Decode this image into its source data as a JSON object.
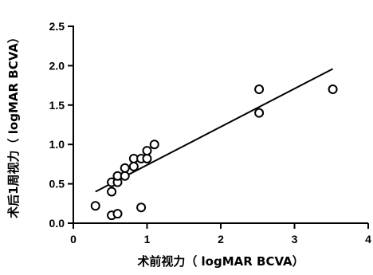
{
  "chart_data": {
    "type": "scatter",
    "xlabel": "术前视力（ logMAR BCVA）",
    "ylabel": "术后1周视力（ logMAR BCVA）",
    "xlim": [
      0,
      4
    ],
    "ylim": [
      0,
      2.5
    ],
    "x_ticks": [
      "0",
      "1",
      "2",
      "3",
      "4"
    ],
    "y_ticks": [
      "0.0",
      "0.5",
      "1.0",
      "1.5",
      "2.0",
      "2.5"
    ],
    "x_tick_values": [
      0,
      1,
      2,
      3,
      4
    ],
    "y_tick_values": [
      0,
      0.5,
      1.0,
      1.5,
      2.0,
      2.5
    ],
    "grid": false,
    "series": [
      {
        "points": [
          {
            "x": 0.3,
            "y": 0.22
          },
          {
            "x": 0.52,
            "y": 0.1
          },
          {
            "x": 0.6,
            "y": 0.12
          },
          {
            "x": 0.92,
            "y": 0.2
          },
          {
            "x": 0.52,
            "y": 0.4
          },
          {
            "x": 0.52,
            "y": 0.52
          },
          {
            "x": 0.6,
            "y": 0.52
          },
          {
            "x": 0.6,
            "y": 0.6
          },
          {
            "x": 0.7,
            "y": 0.6
          },
          {
            "x": 0.7,
            "y": 0.7
          },
          {
            "x": 0.82,
            "y": 0.72
          },
          {
            "x": 0.82,
            "y": 0.82
          },
          {
            "x": 0.92,
            "y": 0.82
          },
          {
            "x": 1.0,
            "y": 0.82
          },
          {
            "x": 1.0,
            "y": 0.92
          },
          {
            "x": 1.1,
            "y": 1.0
          },
          {
            "x": 2.52,
            "y": 1.7
          },
          {
            "x": 2.52,
            "y": 1.4
          },
          {
            "x": 3.52,
            "y": 1.7
          }
        ]
      }
    ],
    "fit_line": {
      "x": [
        0.3,
        3.52
      ],
      "y": [
        0.4,
        1.96
      ]
    }
  }
}
